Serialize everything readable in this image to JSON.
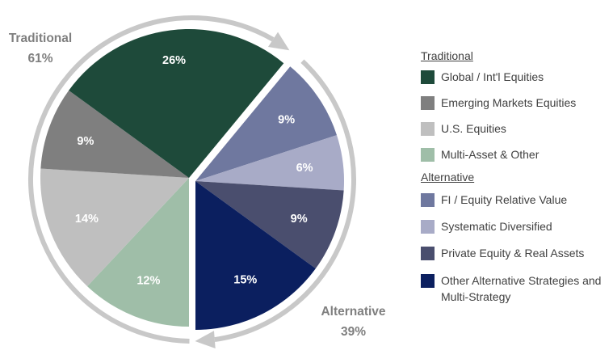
{
  "chart_data": {
    "type": "pie",
    "groups": [
      {
        "name": "Traditional",
        "total_label": "61%",
        "items": [
          {
            "name": "Global / Int'l Equities",
            "value": 26,
            "label": "26%",
            "color": "#1e4a3a"
          },
          {
            "name": "Emerging Markets Equities",
            "value": 9,
            "label": "9%",
            "color": "#7f7f7f"
          },
          {
            "name": "U.S. Equities",
            "value": 14,
            "label": "14%",
            "color": "#bfbfbf"
          },
          {
            "name": "Multi-Asset & Other",
            "value": 12,
            "label": "12%",
            "color": "#9fbea8"
          }
        ]
      },
      {
        "name": "Alternative",
        "total_label": "39%",
        "items": [
          {
            "name": "FI / Equity Relative Value",
            "value": 9,
            "label": "9%",
            "color": "#6f789f"
          },
          {
            "name": "Systematic Diversified",
            "value": 6,
            "label": "6%",
            "color": "#a8abc7"
          },
          {
            "name": "Private Equity & Real Assets",
            "value": 9,
            "label": "9%",
            "color": "#4a4e6e"
          },
          {
            "name": "Other Alternative Strategies and Multi-Strategy",
            "value": 15,
            "label": "15%",
            "color": "#0b1f5f"
          }
        ]
      }
    ],
    "legend_position": "right",
    "arrow_color": "#c8c8c8"
  }
}
